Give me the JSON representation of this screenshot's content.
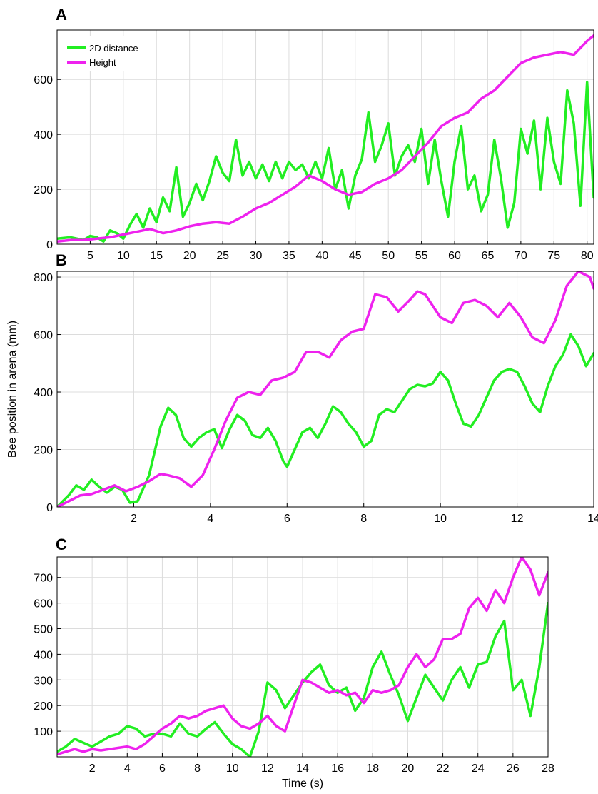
{
  "figure": {
    "ylabel": "Bee position in arena (mm)",
    "xlabel": "Time (s)"
  },
  "colors": {
    "two_d_distance": "#22ee22",
    "height": "#ee22ee"
  },
  "chart_data": [
    {
      "panel": "A",
      "type": "line",
      "xlim": [
        0,
        81
      ],
      "ylim": [
        0,
        780
      ],
      "xticks": [
        5,
        10,
        15,
        20,
        25,
        30,
        35,
        40,
        45,
        50,
        55,
        60,
        65,
        70,
        75,
        80
      ],
      "yticks": [
        0,
        200,
        400,
        600
      ],
      "legend": {
        "position": "top-left",
        "entries": [
          "2D distance",
          "Height"
        ]
      },
      "grid": true,
      "series": [
        {
          "name": "2D distance",
          "color": "#22ee22",
          "x": [
            0,
            2,
            4,
            5,
            6,
            7,
            8,
            9,
            10,
            11,
            12,
            13,
            14,
            15,
            16,
            17,
            18,
            19,
            20,
            21,
            22,
            23,
            24,
            25,
            26,
            27,
            28,
            29,
            30,
            31,
            32,
            33,
            34,
            35,
            36,
            37,
            38,
            39,
            40,
            41,
            42,
            43,
            44,
            45,
            46,
            47,
            48,
            49,
            50,
            51,
            52,
            53,
            54,
            55,
            56,
            57,
            58,
            59,
            60,
            61,
            62,
            63,
            64,
            65,
            66,
            67,
            68,
            69,
            70,
            71,
            72,
            73,
            74,
            75,
            76,
            77,
            78,
            79,
            80,
            81
          ],
          "y": [
            20,
            25,
            15,
            30,
            25,
            10,
            50,
            40,
            20,
            70,
            110,
            60,
            130,
            80,
            170,
            120,
            280,
            100,
            150,
            220,
            160,
            230,
            320,
            260,
            230,
            380,
            250,
            300,
            240,
            290,
            230,
            300,
            240,
            300,
            270,
            290,
            240,
            300,
            240,
            350,
            200,
            270,
            130,
            250,
            310,
            480,
            300,
            360,
            440,
            250,
            320,
            360,
            300,
            420,
            220,
            380,
            230,
            100,
            300,
            430,
            200,
            250,
            120,
            180,
            380,
            240,
            60,
            150,
            420,
            330,
            450,
            200,
            460,
            300,
            220,
            560,
            440,
            140,
            590,
            170
          ]
        },
        {
          "name": "Height",
          "color": "#ee22ee",
          "x": [
            0,
            2,
            4,
            6,
            8,
            10,
            12,
            14,
            16,
            18,
            20,
            22,
            24,
            26,
            28,
            30,
            32,
            34,
            36,
            38,
            40,
            42,
            44,
            46,
            48,
            50,
            52,
            54,
            56,
            58,
            60,
            62,
            64,
            66,
            68,
            70,
            72,
            74,
            76,
            78,
            80,
            81
          ],
          "y": [
            10,
            15,
            15,
            20,
            25,
            35,
            45,
            55,
            40,
            50,
            65,
            75,
            80,
            75,
            100,
            130,
            150,
            180,
            210,
            250,
            230,
            200,
            180,
            190,
            220,
            240,
            270,
            320,
            370,
            430,
            460,
            480,
            530,
            560,
            610,
            660,
            680,
            690,
            700,
            690,
            740,
            760
          ]
        }
      ]
    },
    {
      "panel": "B",
      "type": "line",
      "xlim": [
        0,
        14
      ],
      "ylim": [
        0,
        820
      ],
      "xticks": [
        2,
        4,
        6,
        8,
        10,
        12,
        14
      ],
      "yticks": [
        0,
        200,
        400,
        600,
        800
      ],
      "grid": true,
      "series": [
        {
          "name": "2D distance",
          "color": "#22ee22",
          "x": [
            0,
            0.3,
            0.5,
            0.7,
            0.9,
            1.1,
            1.3,
            1.5,
            1.7,
            1.9,
            2.1,
            2.4,
            2.7,
            2.9,
            3.1,
            3.3,
            3.5,
            3.7,
            3.9,
            4.1,
            4.3,
            4.5,
            4.7,
            4.9,
            5.1,
            5.3,
            5.5,
            5.7,
            5.9,
            6.0,
            6.2,
            6.4,
            6.6,
            6.8,
            7.0,
            7.2,
            7.4,
            7.6,
            7.8,
            8.0,
            8.2,
            8.4,
            8.6,
            8.8,
            9.0,
            9.2,
            9.4,
            9.6,
            9.8,
            10.0,
            10.2,
            10.4,
            10.6,
            10.8,
            11.0,
            11.2,
            11.4,
            11.6,
            11.8,
            12.0,
            12.2,
            12.4,
            12.6,
            12.8,
            13.0,
            13.2,
            13.4,
            13.6,
            13.8,
            14.0
          ],
          "y": [
            0,
            40,
            75,
            60,
            95,
            70,
            50,
            70,
            60,
            15,
            20,
            110,
            280,
            345,
            320,
            240,
            210,
            240,
            260,
            270,
            205,
            270,
            320,
            300,
            250,
            240,
            275,
            230,
            160,
            140,
            200,
            260,
            275,
            240,
            290,
            350,
            330,
            290,
            260,
            210,
            230,
            320,
            340,
            330,
            370,
            410,
            425,
            420,
            430,
            470,
            440,
            360,
            290,
            280,
            320,
            380,
            440,
            470,
            480,
            470,
            420,
            360,
            330,
            420,
            490,
            530,
            600,
            560,
            490,
            535
          ]
        },
        {
          "name": "Height",
          "color": "#ee22ee",
          "x": [
            0,
            0.3,
            0.6,
            0.9,
            1.2,
            1.5,
            1.8,
            2.1,
            2.4,
            2.7,
            2.9,
            3.2,
            3.5,
            3.8,
            4.1,
            4.4,
            4.7,
            5.0,
            5.3,
            5.6,
            5.9,
            6.2,
            6.5,
            6.8,
            7.1,
            7.4,
            7.7,
            8.0,
            8.3,
            8.6,
            8.9,
            9.2,
            9.4,
            9.6,
            9.8,
            10.0,
            10.3,
            10.6,
            10.9,
            11.2,
            11.5,
            11.8,
            12.1,
            12.4,
            12.7,
            13.0,
            13.3,
            13.6,
            13.9,
            14.0
          ],
          "y": [
            0,
            20,
            40,
            45,
            60,
            75,
            55,
            70,
            90,
            115,
            110,
            100,
            70,
            110,
            200,
            300,
            380,
            400,
            390,
            440,
            450,
            470,
            540,
            540,
            520,
            580,
            610,
            620,
            740,
            730,
            680,
            720,
            750,
            740,
            700,
            660,
            640,
            710,
            720,
            700,
            660,
            710,
            660,
            590,
            570,
            650,
            770,
            820,
            800,
            760
          ]
        }
      ]
    },
    {
      "panel": "C",
      "type": "line",
      "xlim": [
        0,
        28
      ],
      "ylim": [
        0,
        780
      ],
      "xticks": [
        2,
        4,
        6,
        8,
        10,
        12,
        14,
        16,
        18,
        20,
        22,
        24,
        26,
        28
      ],
      "yticks": [
        100,
        200,
        300,
        400,
        500,
        600,
        700
      ],
      "grid": true,
      "series": [
        {
          "name": "2D distance",
          "color": "#22ee22",
          "x": [
            0,
            0.5,
            1.0,
            1.5,
            2.0,
            2.5,
            3.0,
            3.5,
            4.0,
            4.5,
            5.0,
            5.5,
            6.0,
            6.5,
            7.0,
            7.5,
            8.0,
            8.5,
            9.0,
            9.5,
            10.0,
            10.5,
            11.0,
            11.5,
            12.0,
            12.5,
            13.0,
            13.5,
            14.0,
            14.5,
            15.0,
            15.5,
            16.0,
            16.5,
            17.0,
            17.5,
            18.0,
            18.5,
            19.0,
            19.5,
            20.0,
            20.5,
            21.0,
            21.5,
            22.0,
            22.5,
            23.0,
            23.5,
            24.0,
            24.5,
            25.0,
            25.5,
            26.0,
            26.5,
            27.0,
            27.5,
            28.0
          ],
          "y": [
            20,
            40,
            70,
            55,
            40,
            60,
            80,
            90,
            120,
            110,
            80,
            90,
            90,
            80,
            130,
            90,
            80,
            110,
            135,
            90,
            50,
            30,
            0,
            100,
            290,
            260,
            190,
            240,
            290,
            330,
            360,
            280,
            250,
            270,
            180,
            230,
            350,
            410,
            320,
            240,
            140,
            230,
            320,
            270,
            220,
            300,
            350,
            270,
            360,
            370,
            470,
            530,
            260,
            300,
            160,
            350,
            600
          ]
        },
        {
          "name": "Height",
          "color": "#ee22ee",
          "x": [
            0,
            0.5,
            1.0,
            1.5,
            2.0,
            2.5,
            3.0,
            3.5,
            4.0,
            4.5,
            5.0,
            5.5,
            6.0,
            6.5,
            7.0,
            7.5,
            8.0,
            8.5,
            9.0,
            9.5,
            10.0,
            10.5,
            11.0,
            11.5,
            12.0,
            12.5,
            13.0,
            13.5,
            14.0,
            14.5,
            15.0,
            15.5,
            16.0,
            16.5,
            17.0,
            17.5,
            18.0,
            18.5,
            19.0,
            19.5,
            20.0,
            20.5,
            21.0,
            21.5,
            22.0,
            22.5,
            23.0,
            23.5,
            24.0,
            24.5,
            25.0,
            25.5,
            26.0,
            26.5,
            27.0,
            27.5,
            28.0
          ],
          "y": [
            10,
            20,
            30,
            20,
            30,
            25,
            30,
            35,
            40,
            30,
            50,
            80,
            110,
            130,
            160,
            150,
            160,
            180,
            190,
            200,
            150,
            120,
            110,
            130,
            160,
            120,
            100,
            200,
            300,
            290,
            270,
            250,
            260,
            240,
            250,
            210,
            260,
            250,
            260,
            280,
            350,
            400,
            350,
            380,
            460,
            460,
            480,
            580,
            620,
            570,
            650,
            600,
            700,
            780,
            730,
            630,
            720
          ]
        }
      ]
    }
  ]
}
